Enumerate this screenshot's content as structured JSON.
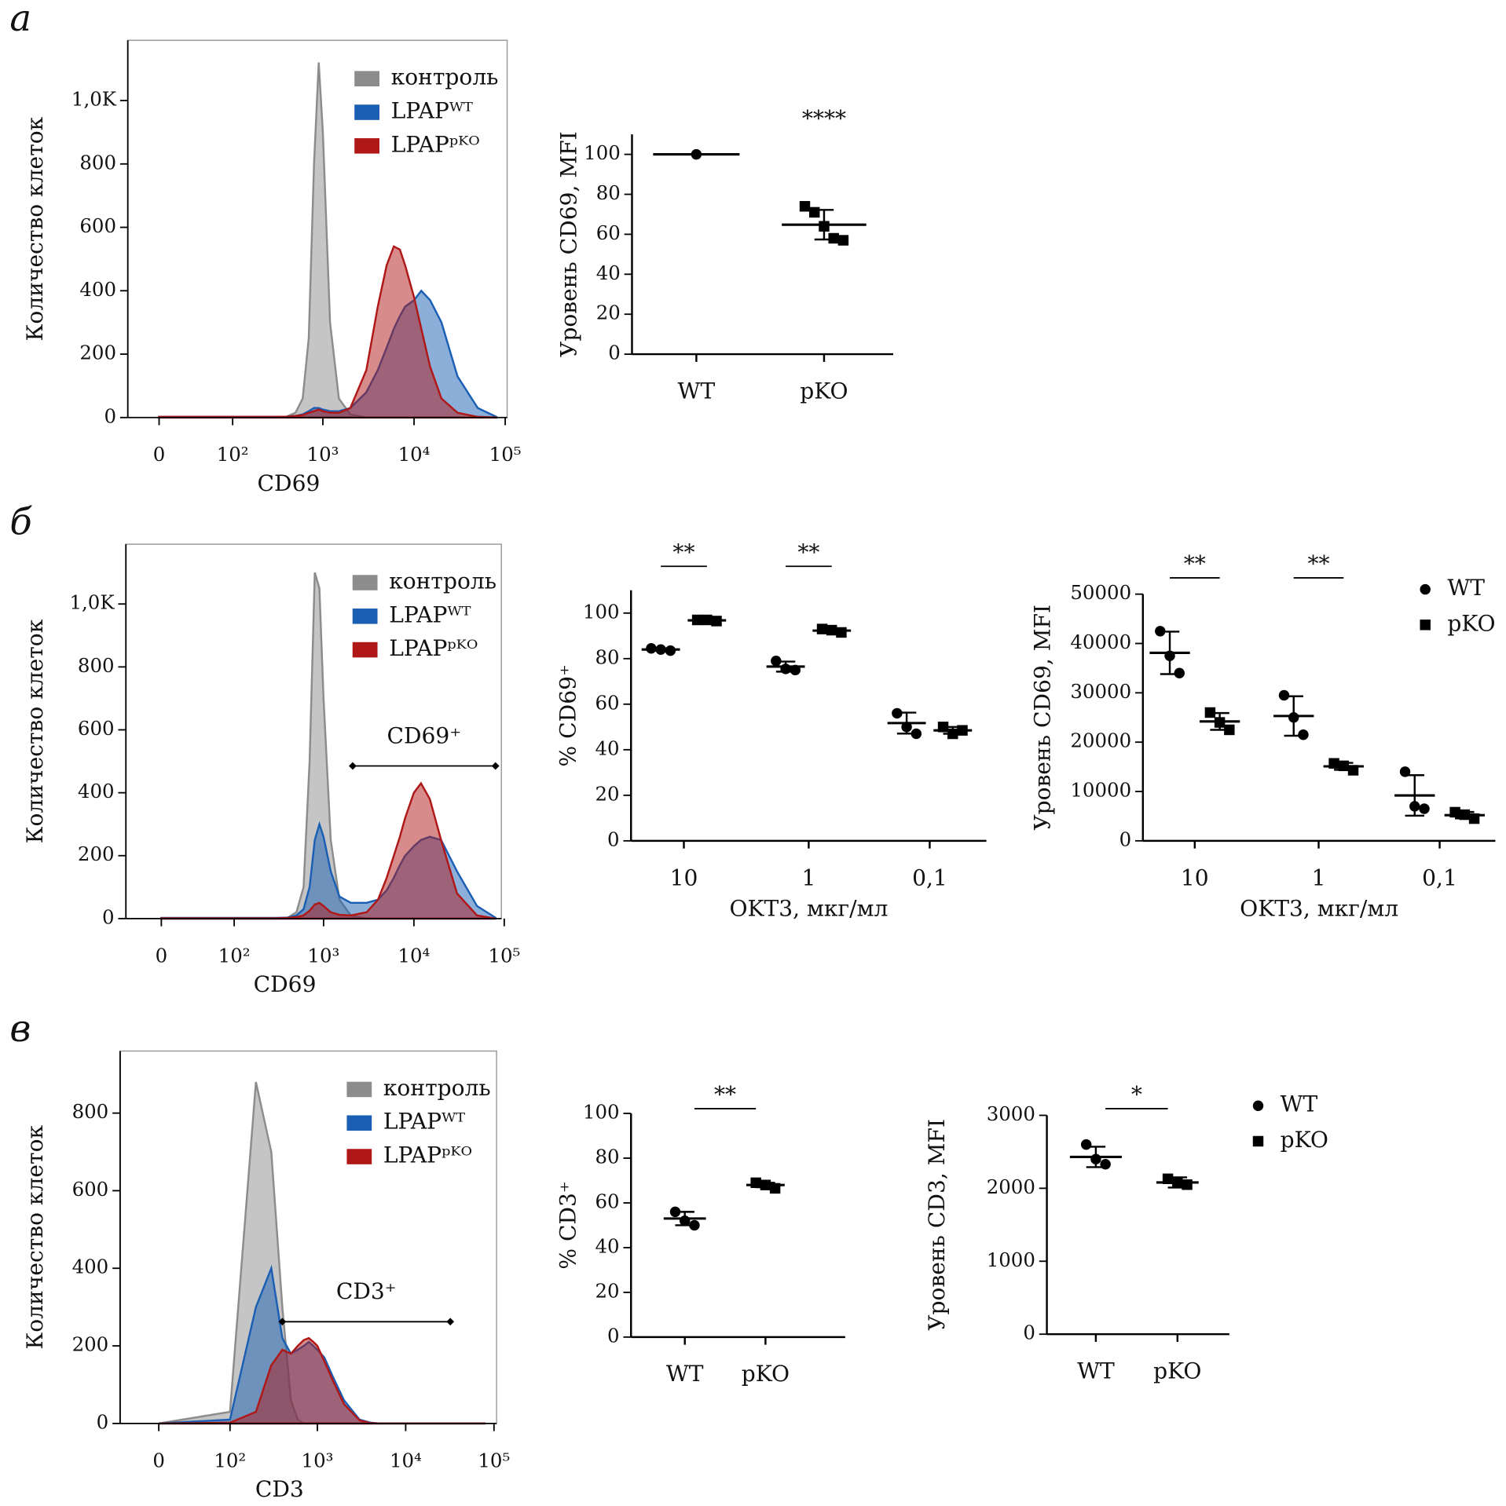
{
  "chart_data": [
    {
      "type": "area",
      "panel": "а",
      "xlabel": "CD69",
      "ylabel": "Количество клеток",
      "xscale": "biexponential",
      "xlim": [
        -28,
        105000
      ],
      "ylim": [
        0,
        1190
      ],
      "xticks": [
        0,
        {
          "value": 100,
          "label": "10²"
        },
        {
          "value": 1000,
          "label": "10³"
        },
        {
          "value": 10000,
          "label": "10⁴"
        },
        {
          "value": 100000,
          "label": "10⁵"
        }
      ],
      "yticks": [
        0,
        200,
        400,
        600,
        800,
        {
          "value": 1000,
          "label": "1,0K"
        }
      ],
      "x": [
        0,
        100,
        200,
        300,
        400,
        500,
        600,
        700,
        800,
        900,
        1000,
        1200,
        1500,
        2000,
        3000,
        4000,
        5000,
        6000,
        7000,
        8000,
        10000,
        12000,
        15000,
        20000,
        30000,
        50000,
        80000
      ],
      "series": [
        {
          "name": "контроль",
          "color": "#8c8c8c",
          "values": [
            0,
            0,
            0,
            0,
            3,
            15,
            60,
            250,
            800,
            1120,
            900,
            300,
            60,
            10,
            0,
            0,
            0,
            0,
            0,
            0,
            0,
            0,
            0,
            0,
            0,
            0,
            0
          ]
        },
        {
          "name": "LPAPᵂᵀ",
          "color": "#1a5fb4",
          "values": [
            2,
            2,
            2,
            2,
            3,
            5,
            10,
            20,
            30,
            30,
            25,
            20,
            20,
            30,
            80,
            150,
            220,
            280,
            320,
            350,
            370,
            400,
            370,
            300,
            130,
            30,
            2
          ]
        },
        {
          "name": "LPAPᵖᴷᴼ",
          "color": "#b01818",
          "values": [
            2,
            2,
            2,
            2,
            3,
            5,
            8,
            15,
            20,
            25,
            20,
            15,
            15,
            30,
            150,
            350,
            480,
            540,
            530,
            480,
            380,
            280,
            160,
            60,
            15,
            2,
            0
          ]
        }
      ],
      "legend": "upper right"
    },
    {
      "type": "dot",
      "ylabel": "Уровень CD69, MFI",
      "ylim": [
        0,
        110
      ],
      "yticks": [
        0,
        20,
        40,
        60,
        80,
        100
      ],
      "categories": [
        "WT",
        "pKO"
      ],
      "markers": [
        "circle",
        "square"
      ],
      "points": [
        [
          100
        ],
        [
          74,
          71,
          64,
          58,
          57
        ]
      ],
      "means": [
        100,
        64.8
      ],
      "errors": [
        null,
        7.4
      ],
      "significance": "****",
      "bracket": false
    },
    {
      "type": "area",
      "panel": "б",
      "xlabel": "CD69",
      "ylabel": "Количество клеток",
      "xscale": "biexponential",
      "xlim": [
        -33,
        93000
      ],
      "ylim": [
        0,
        1190
      ],
      "xticks": [
        0,
        {
          "value": 100,
          "label": "10²"
        },
        {
          "value": 1000,
          "label": "10³"
        },
        {
          "value": 10000,
          "label": "10⁴"
        },
        {
          "value": 100000,
          "label": "10⁵"
        }
      ],
      "yticks": [
        0,
        200,
        400,
        600,
        800,
        {
          "value": 1000,
          "label": "1,0K"
        }
      ],
      "x": [
        0,
        100,
        200,
        300,
        400,
        500,
        600,
        700,
        800,
        900,
        1000,
        1200,
        1500,
        2000,
        3000,
        4000,
        5000,
        6000,
        7000,
        8000,
        10000,
        12000,
        15000,
        20000,
        30000,
        50000,
        80000
      ],
      "series": [
        {
          "name": "контроль",
          "color": "#8c8c8c",
          "values": [
            0,
            0,
            0,
            0,
            3,
            20,
            100,
            500,
            1100,
            1050,
            700,
            250,
            60,
            10,
            0,
            0,
            0,
            0,
            0,
            0,
            0,
            0,
            0,
            0,
            0,
            0,
            0
          ]
        },
        {
          "name": "LPAPᵂᵀ",
          "color": "#1a5fb4",
          "values": [
            2,
            2,
            2,
            2,
            3,
            10,
            30,
            100,
            250,
            300,
            260,
            150,
            70,
            50,
            50,
            60,
            90,
            130,
            170,
            200,
            230,
            250,
            260,
            250,
            150,
            40,
            3
          ]
        },
        {
          "name": "LPAPᵖᴷᴼ",
          "color": "#b01818",
          "values": [
            1,
            1,
            1,
            1,
            2,
            5,
            10,
            25,
            45,
            50,
            40,
            20,
            12,
            10,
            20,
            60,
            130,
            200,
            260,
            320,
            400,
            430,
            380,
            250,
            80,
            10,
            0
          ]
        }
      ],
      "gate": {
        "label": "CD69⁺",
        "range": [
          2100,
          80000
        ]
      },
      "legend": "upper right"
    },
    {
      "type": "grouped_dot",
      "xlabel": "OKT3, мкг/мл",
      "ylabel": "% CD69⁺",
      "ylim": [
        0,
        110
      ],
      "yticks": [
        0,
        20,
        40,
        60,
        80,
        100
      ],
      "categories": [
        "10",
        "1",
        "0,1"
      ],
      "series": [
        {
          "marker": "circle",
          "values": [
            [
              84.5,
              84,
              83.5
            ],
            [
              79,
              75.5,
              75
            ],
            [
              56,
              50,
              47
            ]
          ],
          "means": [
            84,
            76.5,
            51.7
          ],
          "errors": [
            0.5,
            2.2,
            4.6
          ]
        },
        {
          "marker": "square",
          "values": [
            [
              97,
              97,
              96.5
            ],
            [
              93,
              92.5,
              91.5
            ],
            [
              50,
              47,
              48.5
            ]
          ],
          "means": [
            96.8,
            92.3,
            48.5
          ],
          "errors": [
            0.3,
            0.8,
            1.5
          ]
        }
      ],
      "significance": [
        "**",
        "**",
        null
      ],
      "bracket": true
    },
    {
      "type": "grouped_dot",
      "xlabel": "OKT3, мкг/мл",
      "ylabel": "Уровень CD69, MFI",
      "ylim": [
        0,
        50000
      ],
      "yticks": [
        0,
        10000,
        20000,
        30000,
        40000,
        50000
      ],
      "categories": [
        "10",
        "1",
        "0,1"
      ],
      "series": [
        {
          "name": "WT",
          "marker": "circle",
          "values": [
            [
              42500,
              37500,
              34000
            ],
            [
              29500,
              25000,
              21500
            ],
            [
              14000,
              7000,
              6500
            ]
          ],
          "means": [
            38100,
            25300,
            9200
          ],
          "errors": [
            4300,
            4000,
            4100
          ]
        },
        {
          "name": "pKO",
          "marker": "square",
          "values": [
            [
              26000,
              24000,
              22500
            ],
            [
              15700,
              15200,
              14300
            ],
            [
              5800,
              5300,
              4500
            ]
          ],
          "means": [
            24200,
            15100,
            5200
          ],
          "errors": [
            1700,
            700,
            650
          ]
        }
      ],
      "significance": [
        "**",
        "**",
        null
      ],
      "bracket": true,
      "legend": "upper right"
    },
    {
      "type": "area",
      "panel": "в",
      "xlabel": "CD3",
      "ylabel": "Количество клеток",
      "xscale": "biexponential",
      "xlim": [
        -38,
        107000
      ],
      "ylim": [
        0,
        960
      ],
      "xticks": [
        0,
        {
          "value": 100,
          "label": "10²"
        },
        {
          "value": 1000,
          "label": "10³"
        },
        {
          "value": 10000,
          "label": "10⁴"
        },
        {
          "value": 100000,
          "label": "10⁵"
        }
      ],
      "yticks": [
        0,
        200,
        400,
        600,
        800
      ],
      "x": [
        0,
        100,
        200,
        300,
        400,
        500,
        600,
        700,
        800,
        900,
        1000,
        1200,
        1500,
        2000,
        3000,
        4000,
        5000,
        6000,
        7000,
        8000,
        10000,
        12000,
        15000,
        20000,
        30000,
        50000,
        80000
      ],
      "series": [
        {
          "name": "контроль",
          "color": "#8c8c8c",
          "values": [
            0,
            30,
            880,
            700,
            300,
            60,
            10,
            0,
            0,
            0,
            0,
            0,
            0,
            0,
            0,
            0,
            0,
            0,
            0,
            0,
            0,
            0,
            0,
            0,
            0,
            0,
            0
          ]
        },
        {
          "name": "LPAPᵂᵀ",
          "color": "#1a5fb4",
          "values": [
            0,
            10,
            300,
            400,
            220,
            180,
            190,
            200,
            210,
            200,
            190,
            170,
            120,
            60,
            10,
            2,
            0,
            0,
            0,
            0,
            0,
            0,
            0,
            0,
            0,
            0,
            0
          ]
        },
        {
          "name": "LPAPᵖᴷᴼ",
          "color": "#b01818",
          "values": [
            0,
            2,
            30,
            150,
            190,
            180,
            200,
            215,
            220,
            210,
            200,
            160,
            110,
            50,
            8,
            1,
            0,
            0,
            0,
            0,
            0,
            0,
            0,
            0,
            0,
            0,
            0
          ]
        }
      ],
      "gate": {
        "label": "CD3⁺",
        "range": [
          400,
          32000
        ]
      },
      "legend": "upper right"
    },
    {
      "type": "dot",
      "ylabel": "% CD3⁺",
      "ylim": [
        0,
        100
      ],
      "yticks": [
        0,
        20,
        40,
        60,
        80,
        100
      ],
      "categories": [
        "WT",
        "pKO"
      ],
      "markers": [
        "circle",
        "square"
      ],
      "points": [
        [
          56,
          52,
          50
        ],
        [
          69,
          68,
          66.5
        ]
      ],
      "means": [
        53,
        68
      ],
      "errors": [
        3,
        1
      ],
      "significance": "**",
      "bracket": true
    },
    {
      "type": "dot",
      "ylabel": "Уровень CD3, MFI",
      "ylim": [
        0,
        3000
      ],
      "yticks": [
        0,
        1000,
        2000,
        3000
      ],
      "categories": [
        "WT",
        "pKO"
      ],
      "markers": [
        "circle",
        "square"
      ],
      "points": [
        [
          2600,
          2400,
          2330
        ],
        [
          2130,
          2080,
          2050
        ]
      ],
      "means": [
        2430,
        2080
      ],
      "errors": [
        140,
        70
      ],
      "significance": "*",
      "bracket": true,
      "legend": "right"
    }
  ]
}
